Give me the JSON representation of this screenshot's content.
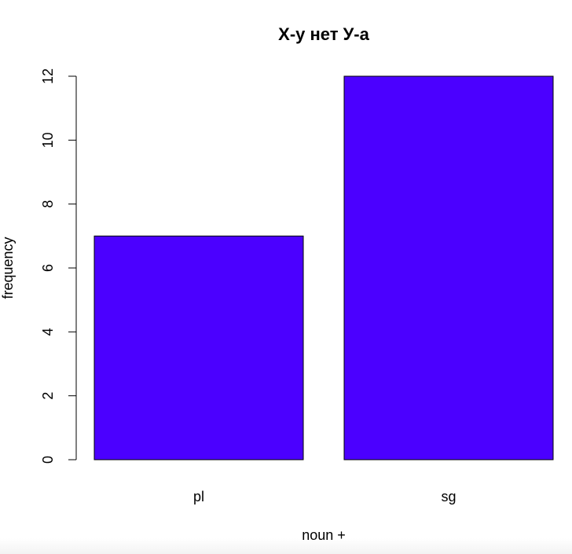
{
  "chart_data": {
    "type": "bar",
    "title": "Х-у нет У-а",
    "xlabel": "noun +",
    "ylabel": "frequency",
    "categories": [
      "pl",
      "sg"
    ],
    "values": [
      7,
      12
    ],
    "ylim": [
      0,
      12
    ],
    "yticks": [
      0,
      2,
      4,
      6,
      8,
      10,
      12
    ],
    "bar_color": "#4b00ff",
    "bar_border_color": "#000000",
    "grid": false,
    "legend": "none"
  }
}
